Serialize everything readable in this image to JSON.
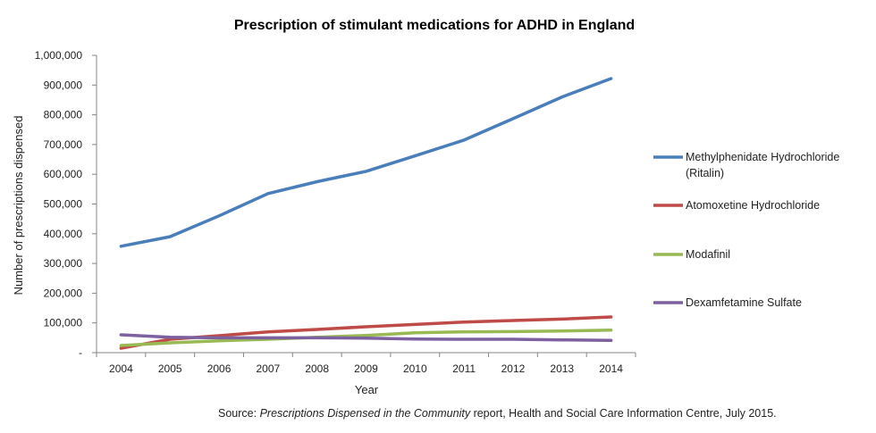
{
  "chart_data": {
    "type": "line",
    "title": "Prescription of stimulant medications for ADHD in England",
    "xlabel": "Year",
    "ylabel": "Number of prescriptions dispensed",
    "categories": [
      "2004",
      "2005",
      "2006",
      "2007",
      "2008",
      "2009",
      "2010",
      "2011",
      "2012",
      "2013",
      "2014"
    ],
    "ylim": [
      0,
      1000000
    ],
    "yticks": [
      0,
      100000,
      200000,
      300000,
      400000,
      500000,
      600000,
      700000,
      800000,
      900000,
      1000000
    ],
    "ytick_labels": [
      "-",
      "100,000",
      "200,000",
      "300,000",
      "400,000",
      "500,000",
      "600,000",
      "700,000",
      "800,000",
      "900,000",
      "1,000,000"
    ],
    "grid": false,
    "legend_position": "right",
    "series": [
      {
        "name": "Methylphenidate Hydrochloride (Ritalin)",
        "legend_lines": [
          "Methylphenidate Hydrochloride",
          "(Ritalin)"
        ],
        "color": "#4a7ebb",
        "values": [
          358000,
          390000,
          460000,
          535000,
          575000,
          610000,
          662000,
          715000,
          787000,
          860000,
          922000
        ]
      },
      {
        "name": "Atomoxetine Hydrochloride",
        "legend_lines": [
          "Atomoxetine Hydrochloride"
        ],
        "color": "#be4b48",
        "values": [
          15000,
          45000,
          57000,
          70000,
          78000,
          87000,
          95000,
          103000,
          108000,
          113000,
          120000
        ]
      },
      {
        "name": "Modafinil",
        "legend_lines": [
          "Modafinil"
        ],
        "color": "#98b954",
        "values": [
          24000,
          33000,
          40000,
          45000,
          52000,
          58000,
          67000,
          70000,
          71000,
          73000,
          76000
        ]
      },
      {
        "name": "Dexamfetamine Sulfate",
        "legend_lines": [
          "Dexamfetamine Sulfate"
        ],
        "color": "#7d60a0",
        "values": [
          60000,
          52000,
          50000,
          50000,
          50000,
          49000,
          46000,
          45000,
          45000,
          43000,
          41000
        ]
      }
    ]
  },
  "source": {
    "prefix": "Source: ",
    "publication": "Prescriptions Dispensed in the Community",
    "suffix": " report, Health and Social Care Information Centre, July 2015."
  }
}
